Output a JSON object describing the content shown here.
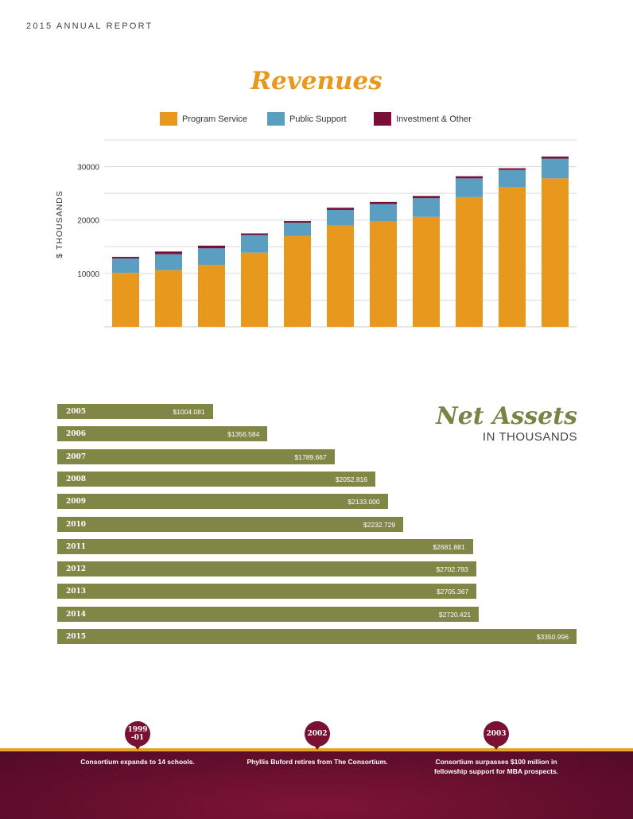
{
  "header": {
    "title": "2015 ANNUAL REPORT"
  },
  "colors": {
    "program": "#e8981c",
    "public": "#5a9ec2",
    "investment": "#7a0e36",
    "assets": "#7f8646",
    "accent": "#e7a42a"
  },
  "chart_data": [
    {
      "type": "bar",
      "stacked": true,
      "title": "Revenues",
      "ylabel": "$ THOUSANDS",
      "yticks": [
        10000,
        20000,
        30000
      ],
      "ylim": [
        0,
        35000
      ],
      "categories": [
        "",
        "",
        "",
        "",
        "",
        "",
        "",
        "",
        "",
        "",
        ""
      ],
      "series": [
        {
          "name": "Program Service",
          "values": [
            10100,
            10600,
            11600,
            13900,
            17000,
            19000,
            19700,
            20600,
            24300,
            26100,
            27800
          ]
        },
        {
          "name": "Public Support",
          "values": [
            2700,
            3000,
            3100,
            3300,
            2500,
            2900,
            3300,
            3500,
            3500,
            3300,
            3700
          ]
        },
        {
          "name": "Investment & Other",
          "values": [
            300,
            500,
            500,
            300,
            300,
            400,
            400,
            400,
            400,
            300,
            400
          ]
        }
      ],
      "grid": true,
      "legend": "top"
    },
    {
      "type": "bar",
      "orientation": "horizontal",
      "title": "Net Assets",
      "subtitle": "IN THOUSANDS",
      "categories": [
        "2005",
        "2006",
        "2007",
        "2008",
        "2009",
        "2010",
        "2011",
        "2012",
        "2013",
        "2014",
        "2015"
      ],
      "values": [
        1004.081,
        1356.584,
        1789.667,
        2052.816,
        2133.0,
        2232.729,
        2681.881,
        2702.793,
        2705.367,
        2720.421,
        3350.996
      ],
      "labels": [
        "$1004.081",
        "$1356.584",
        "$1789.667",
        "$2052.816",
        "$2133.000",
        "$2232.729",
        "$2681.881",
        "$2702.793",
        "$2705.367",
        "$2720.421",
        "$3350.996"
      ],
      "xlim": [
        0,
        3350.996
      ]
    }
  ],
  "timeline": [
    {
      "year": "1999\n-01",
      "text": "Consortium expands to 14 schools."
    },
    {
      "year": "2002",
      "text": "Phyllis Buford retires from The Consortium."
    },
    {
      "year": "2003",
      "text": "Consortium surpasses $100 million in\nfellowship support for MBA prospects."
    }
  ]
}
